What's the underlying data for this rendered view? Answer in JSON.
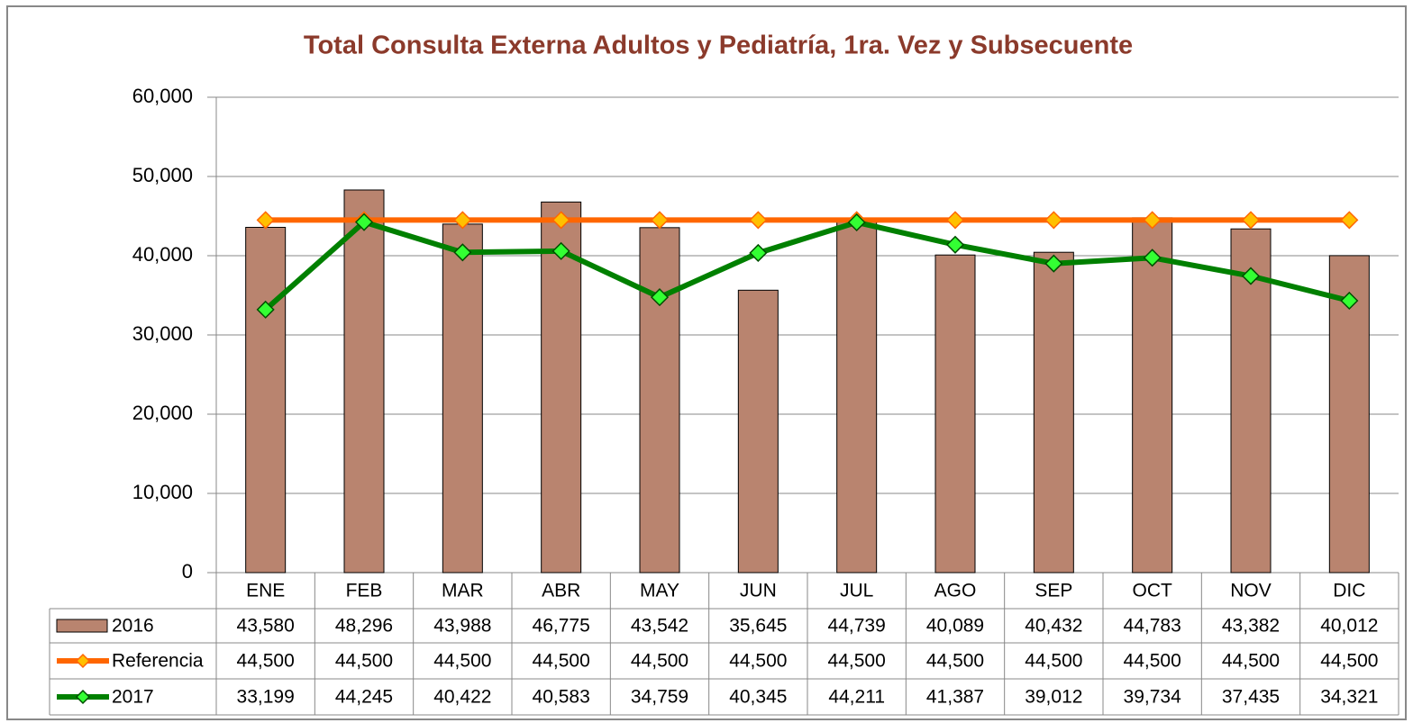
{
  "chart_data": {
    "type": "bar",
    "title": "Total Consulta Externa Adultos y Pediatría, 1ra. Vez y Subsecuente",
    "categories": [
      "ENE",
      "FEB",
      "MAR",
      "ABR",
      "MAY",
      "JUN",
      "JUL",
      "AGO",
      "SEP",
      "OCT",
      "NOV",
      "DIC"
    ],
    "series": [
      {
        "name": "2016",
        "type": "bar",
        "color": "#B9846F",
        "values": [
          43580,
          48296,
          43988,
          46775,
          43542,
          35645,
          44739,
          40089,
          40432,
          44783,
          43382,
          40012
        ],
        "value_labels": [
          "43,580",
          "48,296",
          "43,988",
          "46,775",
          "43,542",
          "35,645",
          "44,739",
          "40,089",
          "40,432",
          "44,783",
          "43,382",
          "40,012"
        ]
      },
      {
        "name": "Referencia",
        "type": "line",
        "color": "#FF6600",
        "marker_color": "#FFC000",
        "values": [
          44500,
          44500,
          44500,
          44500,
          44500,
          44500,
          44500,
          44500,
          44500,
          44500,
          44500,
          44500
        ],
        "value_labels": [
          "44,500",
          "44,500",
          "44,500",
          "44,500",
          "44,500",
          "44,500",
          "44,500",
          "44,500",
          "44,500",
          "44,500",
          "44,500",
          "44,500"
        ]
      },
      {
        "name": "2017",
        "type": "line",
        "color": "#008000",
        "marker_color": "#33FF33",
        "values": [
          33199,
          44245,
          40422,
          40583,
          34759,
          40345,
          44211,
          41387,
          39012,
          39734,
          37435,
          34321
        ],
        "value_labels": [
          "33,199",
          "44,245",
          "40,422",
          "40,583",
          "34,759",
          "40,345",
          "44,211",
          "41,387",
          "39,012",
          "39,734",
          "37,435",
          "34,321"
        ]
      }
    ],
    "ylim": [
      0,
      60000
    ],
    "yticks": [
      0,
      {
        "value": 10000,
        "label": "10,000"
      },
      {
        "value": 20000,
        "label": "20,000"
      },
      {
        "value": 30000,
        "label": "30,000"
      },
      {
        "value": 40000,
        "label": "40,000"
      },
      {
        "value": 50000,
        "label": "50,000"
      },
      {
        "value": 60000,
        "label": "60,000"
      }
    ],
    "grid": true
  }
}
